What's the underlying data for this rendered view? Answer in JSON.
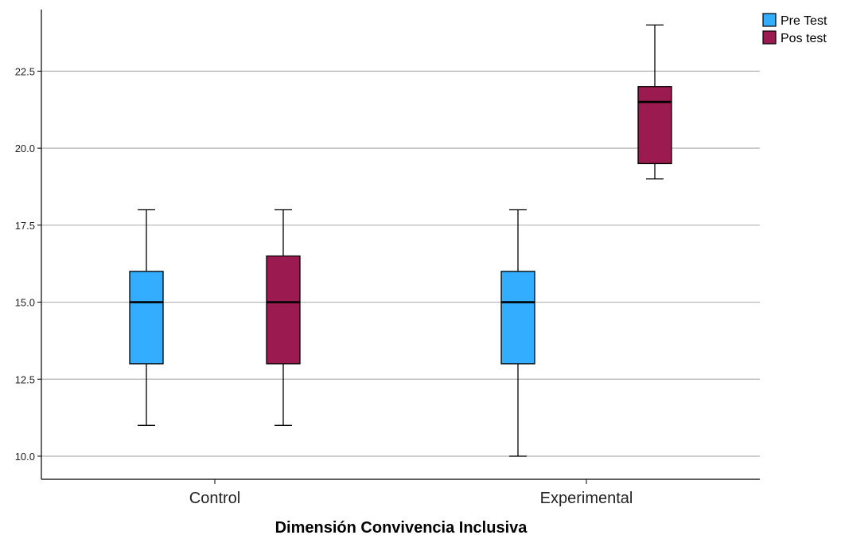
{
  "chart_data": {
    "type": "boxplot",
    "xlabel": "Dimensión Convivencia Inclusiva",
    "ylabel": "",
    "ylim": [
      9.25,
      24.5
    ],
    "yticks": [
      "10.0",
      "12.5",
      "15.0",
      "17.5",
      "20.0",
      "22.5"
    ],
    "ytick_values": [
      10.0,
      12.5,
      15.0,
      17.5,
      20.0,
      22.5
    ],
    "grid": true,
    "legend_position": "top-right",
    "categories": [
      "Control",
      "Experimental"
    ],
    "series": [
      {
        "name": "Pre Test",
        "color": "#33adff",
        "boxes": [
          {
            "min": 11,
            "q1": 13,
            "median": 15,
            "q3": 16,
            "max": 18
          },
          {
            "min": 10,
            "q1": 13,
            "median": 15,
            "q3": 16,
            "max": 18
          }
        ]
      },
      {
        "name": "Pos test",
        "color": "#9b1a4f",
        "boxes": [
          {
            "min": 11,
            "q1": 13,
            "median": 15,
            "q3": 16.5,
            "max": 18
          },
          {
            "min": 19,
            "q1": 19.5,
            "median": 21.5,
            "q3": 22,
            "max": 24
          }
        ]
      }
    ]
  }
}
